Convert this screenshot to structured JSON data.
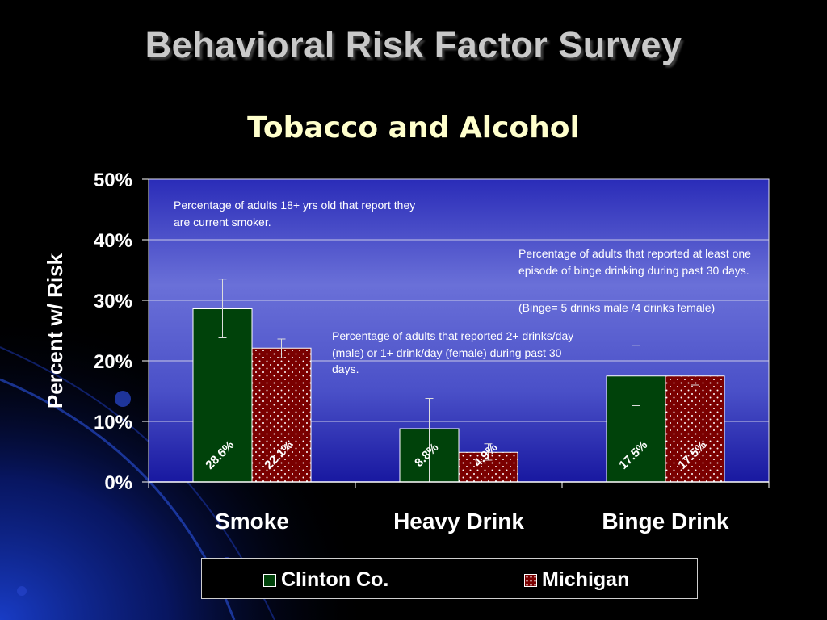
{
  "slide": {
    "title": "Behavioral Risk Factor Survey",
    "subtitle": "Tobacco and Alcohol"
  },
  "colors": {
    "background": "#000000",
    "plot_background_top": "#3a3ec6",
    "plot_background_bottom": "#1b1ba3",
    "clinton": "#00420a",
    "michigan": "#7a0000",
    "title_color": "#c9c9c9",
    "subtitle_color": "#ffffcc"
  },
  "notes": {
    "smoke": "Percentage of adults 18+ yrs old that report they are current smoker.",
    "heavy": "Percentage of adults that reported 2+ drinks/day (male) or 1+ drink/day (female) during past 30 days.",
    "binge": "Percentage of adults that reported at least one episode of binge drinking during past 30 days.",
    "binge_def": "(Binge= 5 drinks male /4 drinks female)"
  },
  "chart_data": {
    "type": "bar",
    "title": "Tobacco and Alcohol",
    "ylabel": "Percent w/ Risk",
    "xlabel": "",
    "ylim": [
      0,
      50
    ],
    "yticks": [
      "0%",
      "10%",
      "20%",
      "30%",
      "40%",
      "50%"
    ],
    "grid": true,
    "legend_position": "bottom",
    "categories": [
      "Smoke",
      "Heavy Drink",
      "Binge Drink"
    ],
    "series": [
      {
        "name": "Clinton Co.",
        "values": [
          28.6,
          8.8,
          17.5
        ],
        "labels": [
          "28.6%",
          "8.8%",
          "17.5%"
        ],
        "error_low": [
          23.8,
          0,
          12.6
        ],
        "error_high": [
          33.5,
          13.8,
          22.5
        ]
      },
      {
        "name": "Michigan",
        "values": [
          22.1,
          4.9,
          17.5
        ],
        "labels": [
          "22.1%",
          "4.9%",
          "17.5%"
        ],
        "error_low": [
          20.5,
          3.6,
          16.0
        ],
        "error_high": [
          23.6,
          6.3,
          19.0
        ]
      }
    ]
  }
}
